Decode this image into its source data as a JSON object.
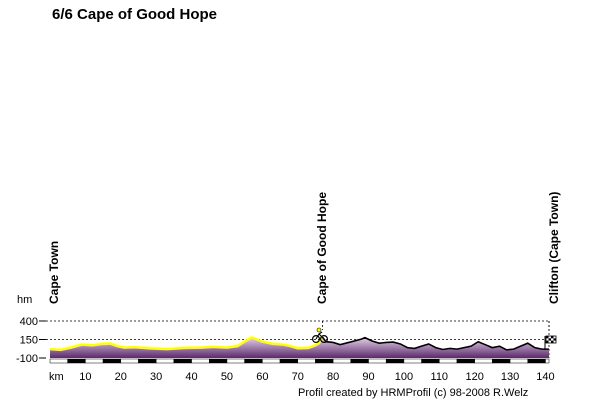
{
  "chart_data": {
    "type": "area",
    "title": "6/6 Cape of Good Hope",
    "ylabel": "hm",
    "xlabel": "km",
    "xlim": [
      0,
      141
    ],
    "ylim": [
      -100,
      400
    ],
    "x_ticks": [
      10,
      20,
      30,
      40,
      50,
      60,
      70,
      80,
      90,
      100,
      110,
      120,
      130,
      140
    ],
    "y_ticks": [
      400,
      150,
      -100
    ],
    "grid": "dashed lines at 400 and 150",
    "series": [
      {
        "segment": "yellow-highlight",
        "x": [
          0,
          3,
          6,
          9,
          12,
          15,
          17,
          19,
          21,
          24,
          28,
          33,
          38,
          43,
          46,
          50,
          53,
          55,
          57,
          58,
          60,
          63,
          66,
          68,
          70,
          73,
          75,
          76,
          77
        ],
        "y": [
          20,
          10,
          40,
          80,
          70,
          90,
          95,
          60,
          40,
          45,
          30,
          20,
          35,
          40,
          50,
          40,
          60,
          120,
          175,
          160,
          120,
          90,
          80,
          60,
          30,
          35,
          70,
          100,
          180
        ]
      },
      {
        "segment": "black",
        "x": [
          77,
          78,
          80,
          82,
          84,
          86,
          88,
          89,
          91,
          93,
          95,
          97,
          99,
          101,
          103,
          105,
          107,
          109,
          111,
          113,
          115,
          117,
          119,
          121,
          123,
          125,
          127,
          129,
          131,
          133,
          135,
          137,
          139,
          141
        ],
        "y": [
          180,
          120,
          110,
          80,
          105,
          130,
          155,
          175,
          130,
          100,
          110,
          115,
          90,
          40,
          30,
          60,
          90,
          40,
          15,
          30,
          20,
          40,
          60,
          120,
          80,
          40,
          60,
          10,
          20,
          60,
          100,
          40,
          20,
          20
        ]
      }
    ],
    "waypoints": [
      {
        "km": 0,
        "label": "Cape Town"
      },
      {
        "km": 77,
        "label": "Cape of Good Hope"
      },
      {
        "km": 141,
        "label": "Clifton (Cape Town)"
      }
    ],
    "credit": "Profil created by HRMProfil (c) 98-2008 R.Welz",
    "colors": {
      "fill_top": "#e5d2e8",
      "fill_bottom": "#5a2a6a",
      "highlight": "#ffff00",
      "profile_line": "#000000"
    }
  }
}
